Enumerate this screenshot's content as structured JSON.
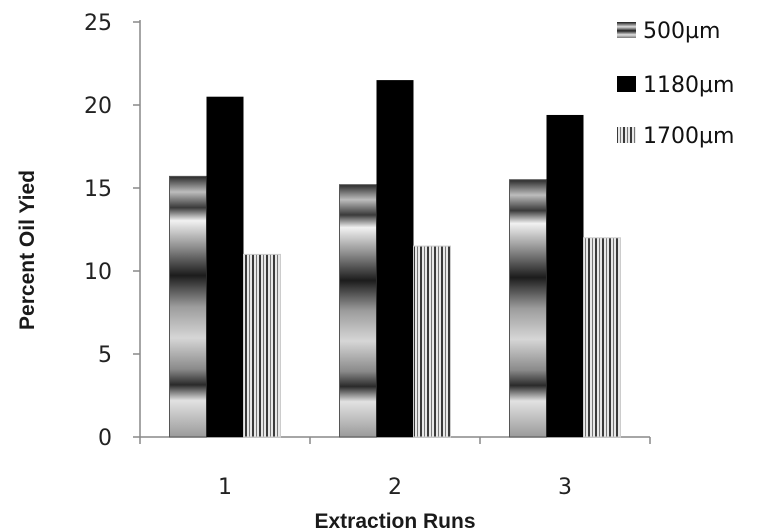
{
  "chart_data": {
    "type": "bar",
    "title": "",
    "xlabel": "Extraction Runs",
    "ylabel": "Percent Oil Yied",
    "categories": [
      "1",
      "2",
      "3"
    ],
    "series": [
      {
        "name": "500µm",
        "values": [
          15.7,
          15.2,
          15.5
        ],
        "pattern": "horizontal-gradient-bands"
      },
      {
        "name": "1180µm",
        "values": [
          20.5,
          21.5,
          19.4
        ],
        "pattern": "solid-black"
      },
      {
        "name": "1700µm",
        "values": [
          11.0,
          11.5,
          12.0
        ],
        "pattern": "vertical-stripes"
      }
    ],
    "ylim": [
      0,
      25
    ],
    "yticks": [
      "0",
      "5",
      "10",
      "15",
      "20",
      "25"
    ],
    "grid": false,
    "legend_position": "top-right",
    "colors": {
      "bar_dark": "#000000",
      "stripe_light": "#e8e8e8",
      "axis": "#888888"
    }
  }
}
